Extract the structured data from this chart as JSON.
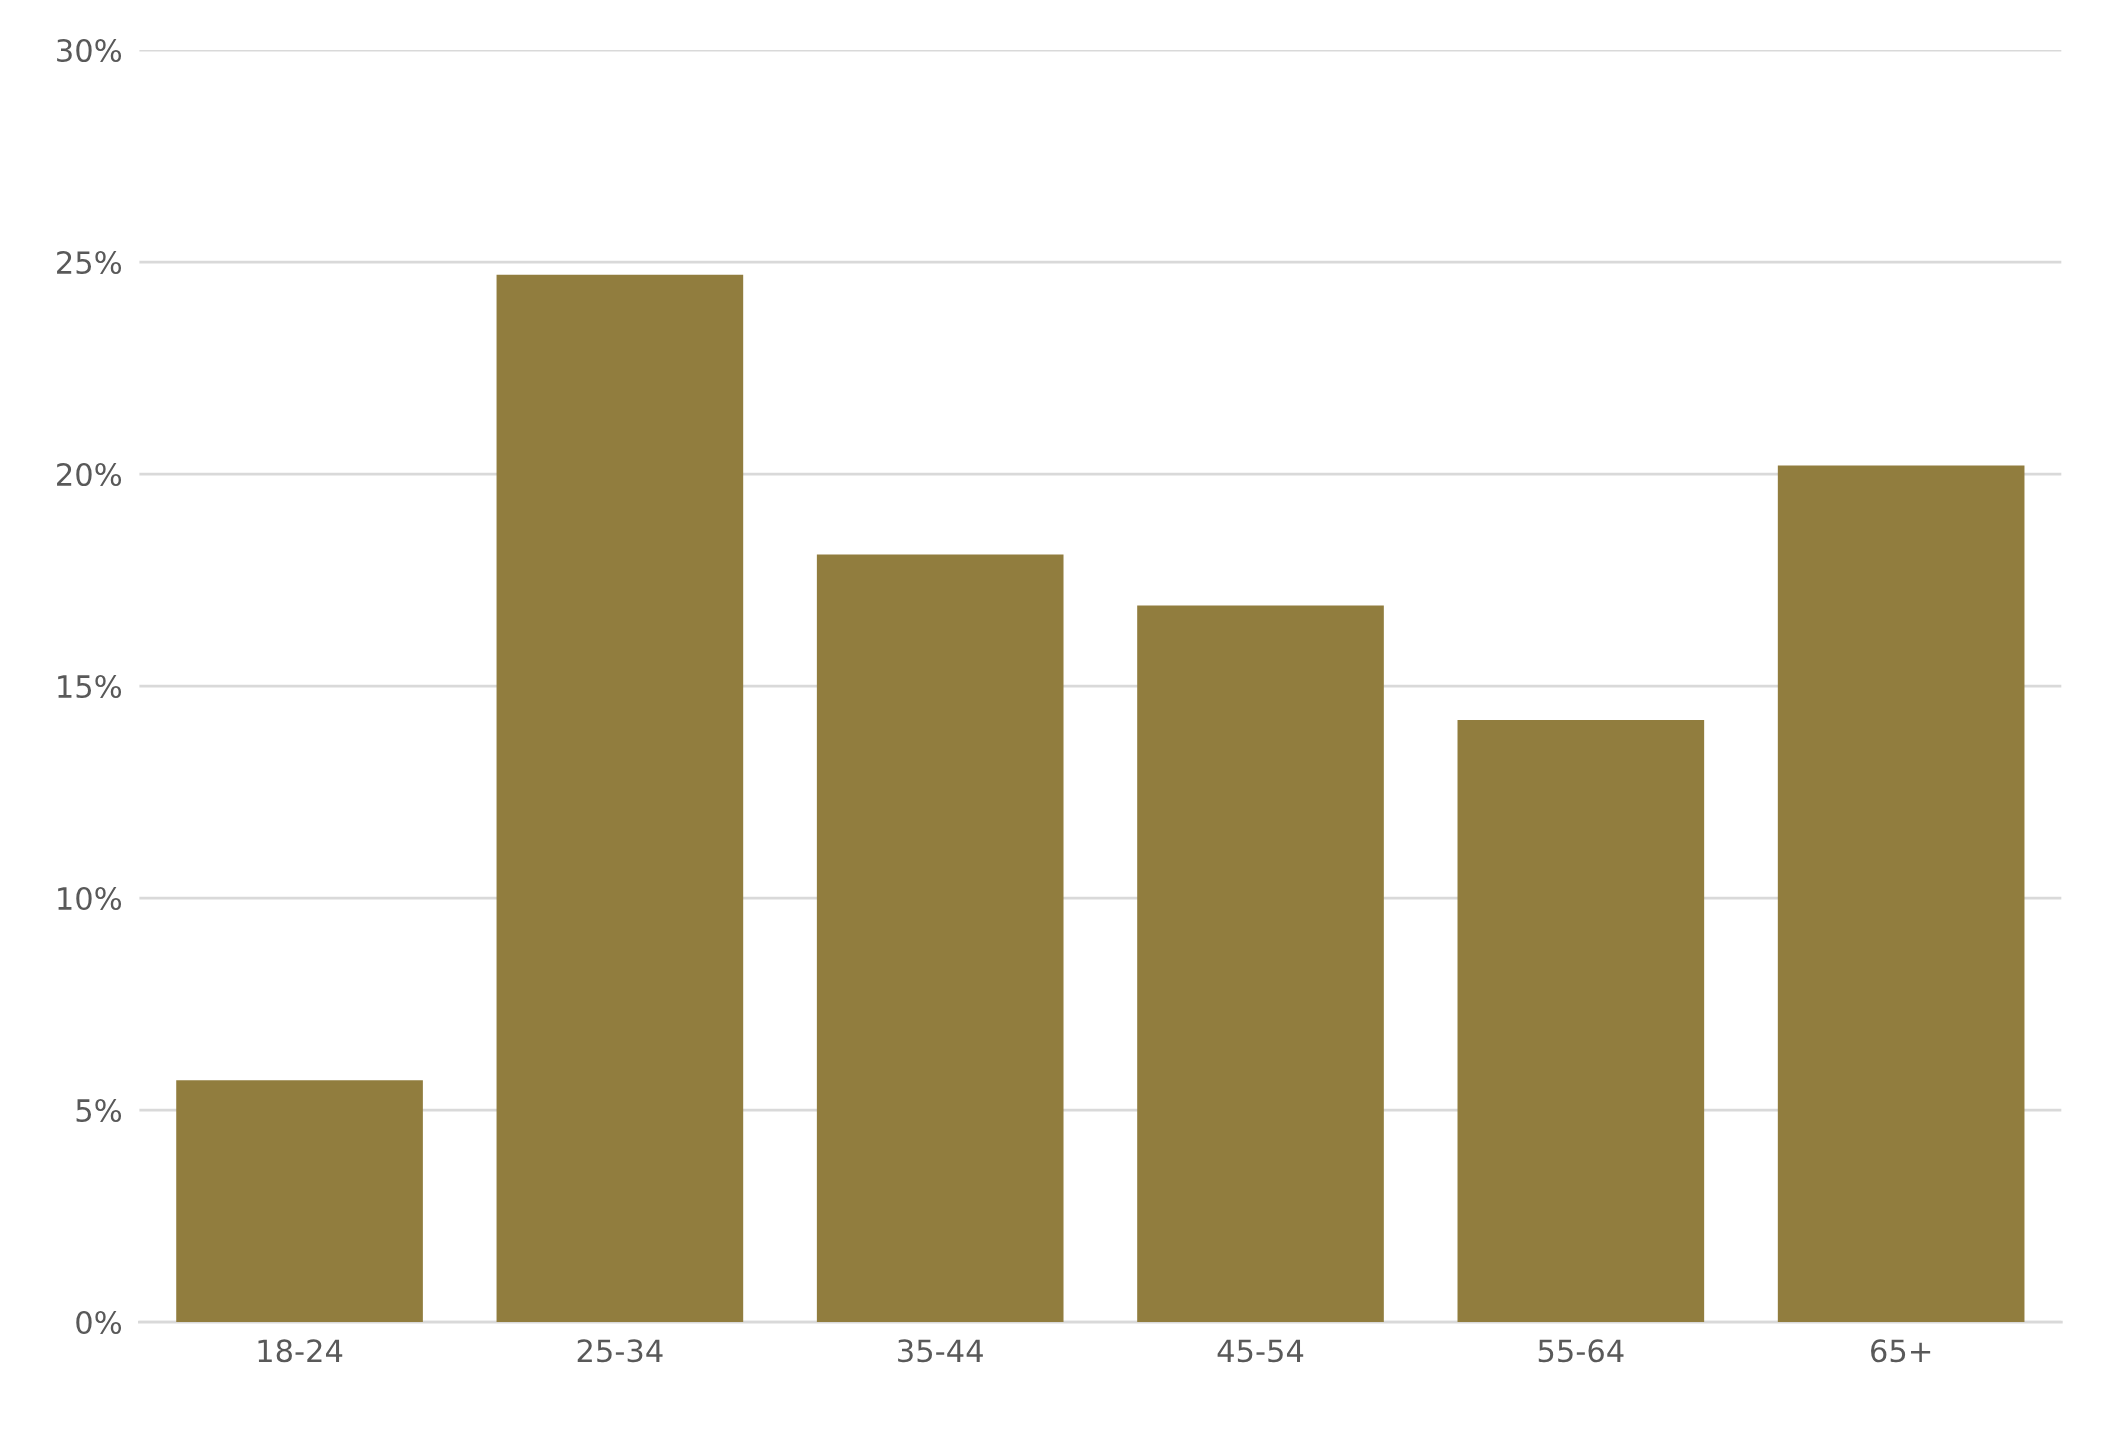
{
  "chart_data": {
    "type": "bar",
    "categories": [
      "18-24",
      "25-34",
      "35-44",
      "45-54",
      "55-64",
      "65+"
    ],
    "values": [
      5.7,
      24.7,
      18.1,
      16.9,
      14.2,
      20.2
    ],
    "color": "#917d3e",
    "ylim": [
      0,
      30
    ],
    "yticks": [
      {
        "value": 0,
        "label": "0%"
      },
      {
        "value": 5,
        "label": "5%"
      },
      {
        "value": 10,
        "label": "10%"
      },
      {
        "value": 15,
        "label": "15%"
      },
      {
        "value": 20,
        "label": "20%"
      },
      {
        "value": 25,
        "label": "25%"
      },
      {
        "value": 30,
        "label": "30%"
      }
    ],
    "grid": "y",
    "legend": false
  }
}
